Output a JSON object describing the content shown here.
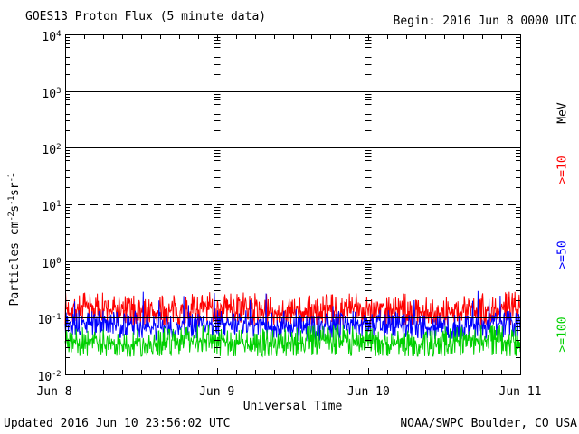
{
  "header": {
    "title": "GOES13 Proton Flux (5 minute data)",
    "begin": "Begin: 2016 Jun 8 0000 UTC"
  },
  "footer": {
    "updated": "Updated 2016 Jun 10 23:56:02 UTC",
    "source": "NOAA/SWPC Boulder, CO USA"
  },
  "chart_data": {
    "type": "line",
    "title": "GOES13 Proton Flux (5 minute data)",
    "begin_time": "2016 Jun 8 0000 UTC",
    "xlabel": "Universal Time",
    "ylabel_parts": [
      {
        "t": "Particles  cm"
      },
      {
        "s": "-2"
      },
      {
        "t": "s"
      },
      {
        "s": "-1"
      },
      {
        "t": "sr"
      },
      {
        "s": "-1"
      }
    ],
    "right_axis_unit": "MeV",
    "x_tick_labels": [
      "Jun 8",
      "Jun 9",
      "Jun 10",
      "Jun 11"
    ],
    "y_tick_exponents": [
      4,
      3,
      2,
      1,
      0,
      -1,
      -2
    ],
    "ylim": [
      0.01,
      10000
    ],
    "days": 3,
    "points_per_day": 288,
    "sample_interval_minutes": 5,
    "grid": {
      "solid_decade_lines": [
        3,
        2,
        0,
        -1
      ],
      "dashed_decade_lines": [
        1
      ],
      "x_minor_ticks_per_day": 8,
      "day_gridline_style": "tick-dashes"
    },
    "legend": [
      {
        "label": "MeV",
        "color": "#000000"
      },
      {
        "label": ">=10",
        "color": "#ff0000"
      },
      {
        "label": ">=50",
        "color": "#0000ff"
      },
      {
        "label": ">=100",
        "color": "#00d000"
      }
    ],
    "series": [
      {
        "name": ">=10",
        "unit": "MeV",
        "color": "#ff0000",
        "approx_flux_range": [
          0.08,
          0.35
        ],
        "flux_log10_mean": -0.87,
        "flux_log10_amp": 0.3,
        "flux_log10_min": -1.13,
        "flux_log10_max": -0.44,
        "wobble": 0.04,
        "seed": 7
      },
      {
        "name": ">=50",
        "unit": "MeV",
        "color": "#0000ff",
        "approx_flux_range": [
          0.04,
          0.33
        ],
        "flux_log10_mean": -1.14,
        "flux_log10_amp": 0.24,
        "flux_log10_min": -1.42,
        "flux_log10_max": -0.48,
        "wobble": 0.04,
        "seed": 13,
        "spike_rate": 0.02,
        "spike_base": -0.95,
        "spike_span": 0.45
      },
      {
        "name": ">=100",
        "unit": "MeV",
        "color": "#00d000",
        "approx_flux_range": [
          0.02,
          0.09
        ],
        "flux_log10_mean": -1.44,
        "flux_log10_amp": 0.28,
        "flux_log10_min": -1.68,
        "flux_log10_max": -1.05,
        "wobble": 0.05,
        "seed": 21
      }
    ]
  }
}
